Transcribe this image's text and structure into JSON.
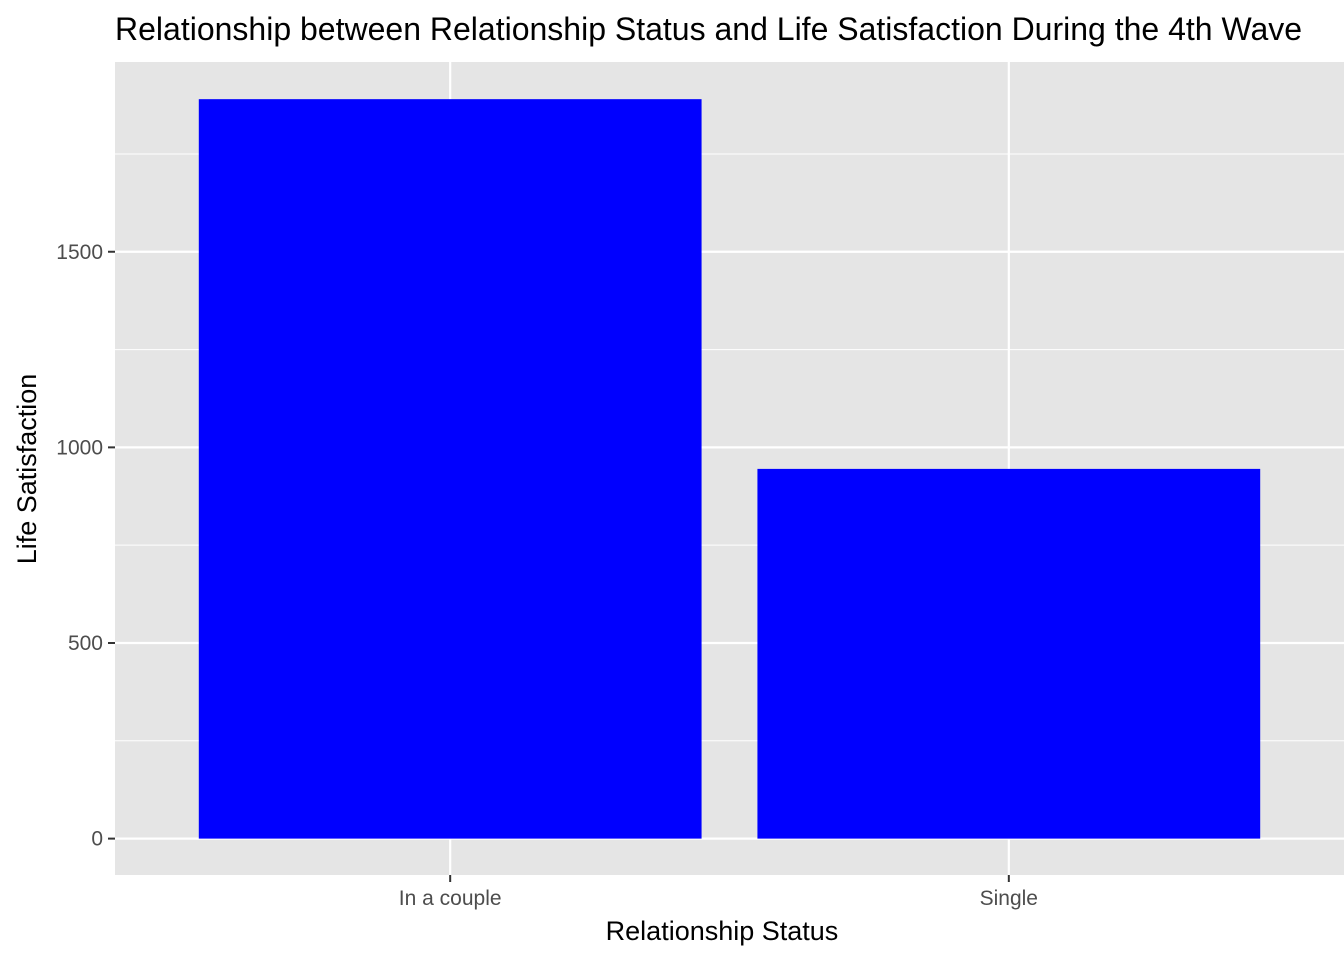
{
  "chart_data": {
    "type": "bar",
    "title": "Relationship between Relationship Status and Life Satisfaction During the 4th Wave",
    "xlabel": "Relationship Status",
    "ylabel": "Life Satisfaction",
    "categories": [
      "In a couple",
      "Single"
    ],
    "values": [
      1890,
      945
    ],
    "ylim": [
      -93,
      1985
    ],
    "yticks": [
      0,
      500,
      1000,
      1500
    ],
    "ytick_labels": [
      "0",
      "500",
      "1000",
      "1500"
    ],
    "grid": true,
    "legend": "none",
    "colors": {
      "bar": "#0000ff",
      "panel_background": "#e5e5e5",
      "grid": "#ffffff",
      "tick_text": "#4d4d4d",
      "tick_mark": "#333333"
    }
  }
}
